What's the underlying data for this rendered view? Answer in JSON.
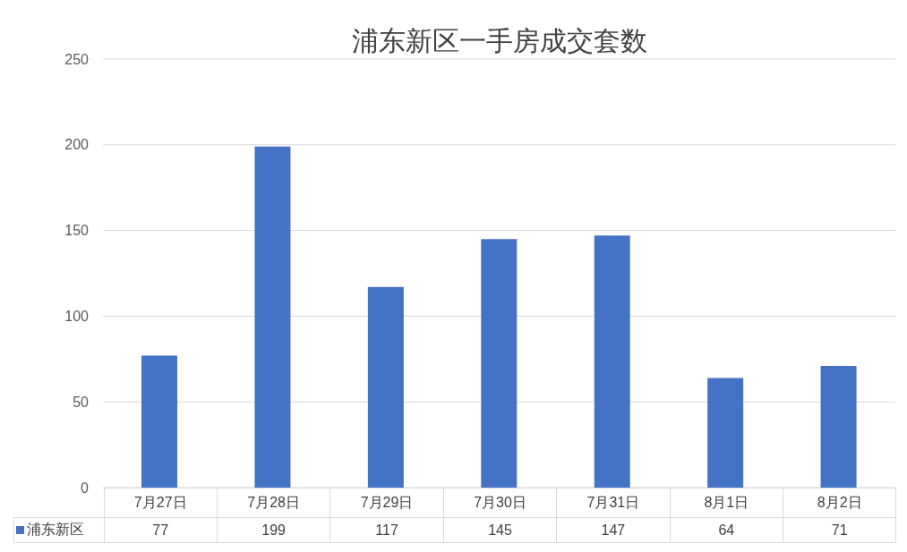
{
  "chart_data": {
    "type": "bar",
    "title": "浦东新区一手房成交套数",
    "categories": [
      "7月27日",
      "7月28日",
      "7月29日",
      "7月30日",
      "7月31日",
      "8月1日",
      "8月2日"
    ],
    "series": [
      {
        "name": "浦东新区",
        "color": "#4472c4",
        "values": [
          77,
          199,
          117,
          145,
          147,
          64,
          71
        ]
      }
    ],
    "ylim": [
      0,
      250
    ],
    "yticks": [
      0,
      50,
      100,
      150,
      200,
      250
    ],
    "grid": "y",
    "legend": "bottom left",
    "data_labels": true
  }
}
